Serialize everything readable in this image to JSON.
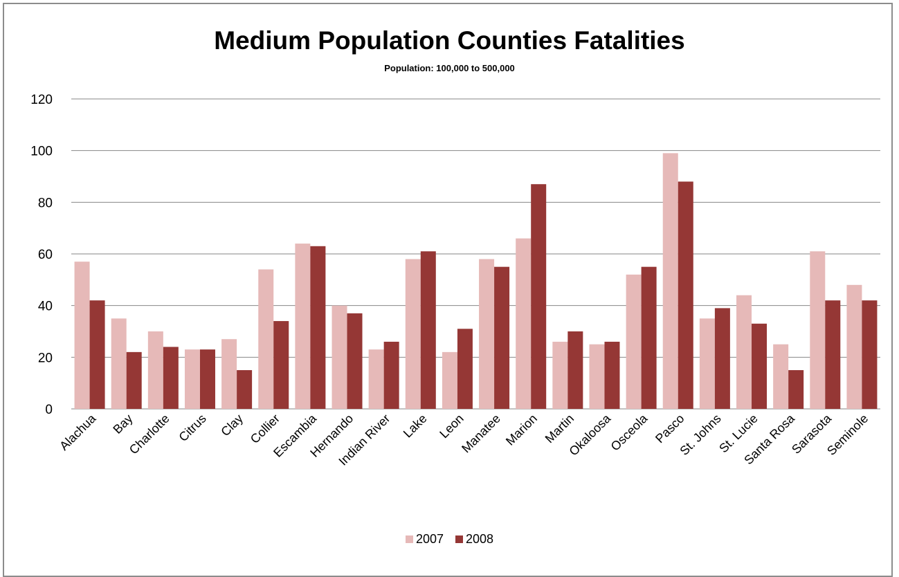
{
  "chart_data": {
    "type": "bar",
    "title": "Medium Population Counties Fatalities",
    "subtitle": "Population:  100,000 to 500,000",
    "xlabel": "",
    "ylabel": "",
    "ylim": [
      0,
      120
    ],
    "yticks": [
      0,
      20,
      40,
      60,
      80,
      100,
      120
    ],
    "grid": true,
    "legend_position": "bottom",
    "categories": [
      "Alachua",
      "Bay",
      "Charlotte",
      "Citrus",
      "Clay",
      "Collier",
      "Escambia",
      "Hernando",
      "Indian River",
      "Lake",
      "Leon",
      "Manatee",
      "Marion",
      "Martin",
      "Okaloosa",
      "Osceola",
      "Pasco",
      "St. Johns",
      "St. Lucie",
      "Santa Rosa",
      "Sarasota",
      "Seminole"
    ],
    "series": [
      {
        "name": "2007",
        "color": "#e6b9b8",
        "values": [
          57,
          35,
          30,
          23,
          27,
          54,
          64,
          40,
          23,
          58,
          22,
          58,
          66,
          26,
          25,
          52,
          99,
          35,
          44,
          25,
          61,
          48
        ]
      },
      {
        "name": "2008",
        "color": "#953735",
        "values": [
          42,
          22,
          24,
          23,
          15,
          34,
          63,
          37,
          26,
          61,
          31,
          55,
          87,
          30,
          26,
          55,
          88,
          39,
          33,
          15,
          42,
          42
        ]
      }
    ]
  }
}
